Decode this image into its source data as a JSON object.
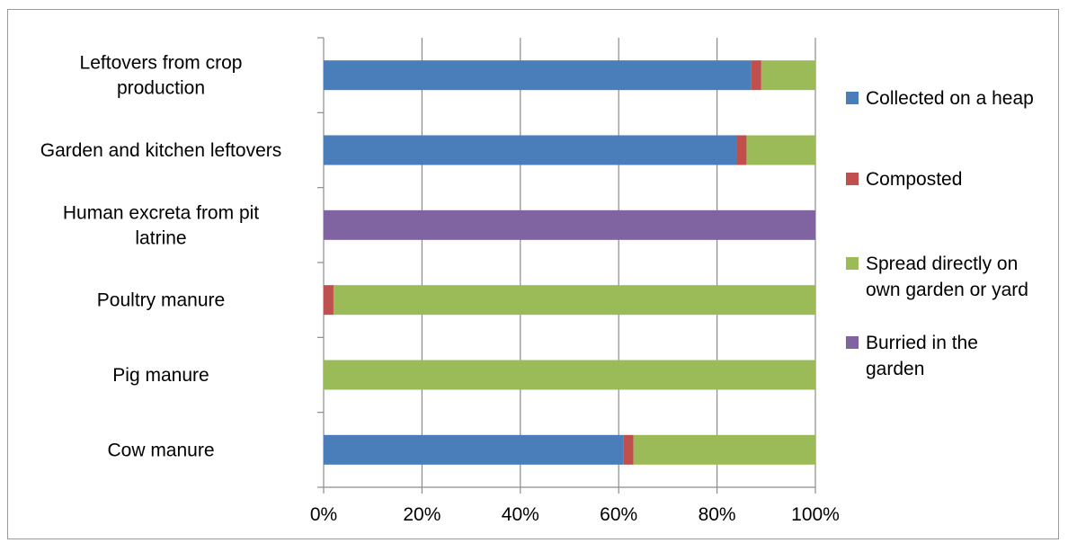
{
  "chart_data": {
    "type": "bar",
    "orientation": "horizontal",
    "stacked": "percent",
    "categories": [
      [
        "Leftovers from crop",
        "production"
      ],
      [
        "Garden and kitchen leftovers"
      ],
      [
        "Human excreta from pit",
        "latrine"
      ],
      [
        "Poultry manure"
      ],
      [
        "Pig manure"
      ],
      [
        "Cow manure"
      ]
    ],
    "series": [
      {
        "name": "Collected on a heap",
        "legend": [
          "Collected on a heap"
        ],
        "color": "#4a7ebb",
        "values": [
          87,
          84,
          0,
          0,
          0,
          61
        ]
      },
      {
        "name": "Composted",
        "legend": [
          "Composted"
        ],
        "color": "#c0504d",
        "values": [
          2,
          2,
          0,
          2,
          0,
          2
        ]
      },
      {
        "name": "Spread directly on own garden or yard",
        "legend": [
          "Spread directly on",
          "own garden or yard"
        ],
        "color": "#9bbb59",
        "values": [
          11,
          14,
          0,
          98,
          100,
          37
        ]
      },
      {
        "name": "Burried in the garden",
        "legend": [
          "Burried in the",
          "garden"
        ],
        "color": "#8064a2",
        "values": [
          0,
          0,
          100,
          0,
          0,
          0
        ]
      }
    ],
    "x_ticks": [
      "0%",
      "20%",
      "40%",
      "60%",
      "80%",
      "100%"
    ],
    "xlim": [
      0,
      100
    ],
    "grid": true,
    "legend_position": "right",
    "title": "",
    "xlabel": "",
    "ylabel": ""
  }
}
